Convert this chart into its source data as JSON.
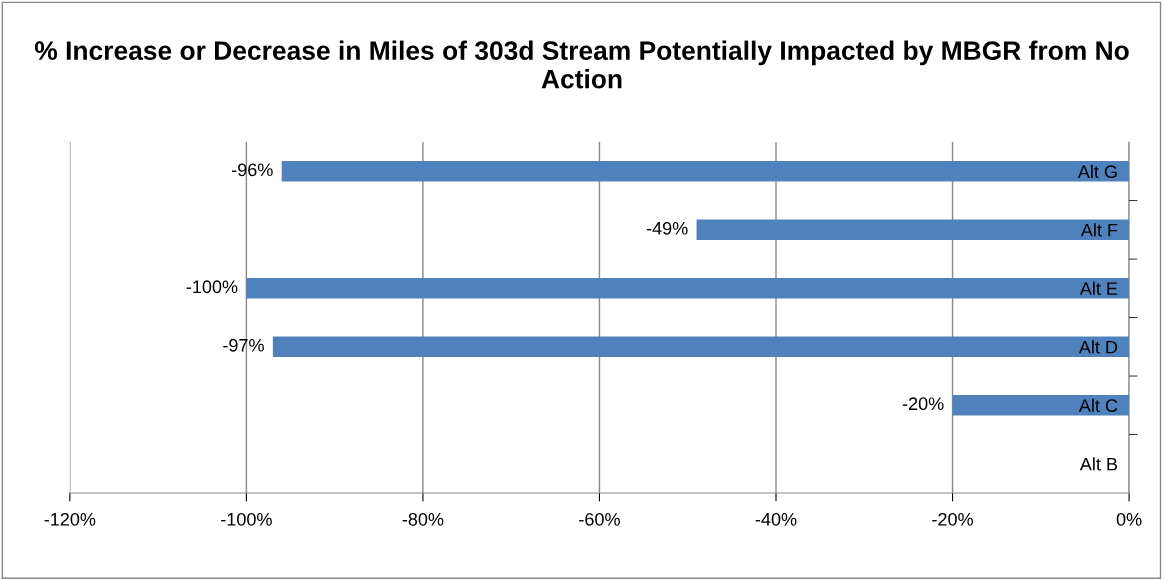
{
  "chart_data": {
    "type": "bar",
    "orientation": "horizontal",
    "title": "% Increase or Decrease in Miles of 303d Stream Potentially Impacted by MBGR from No Action",
    "categories": [
      "Alt G",
      "Alt F",
      "Alt E",
      "Alt D",
      "Alt C",
      "Alt B"
    ],
    "values": [
      -96,
      -49,
      -100,
      -97,
      -20,
      0
    ],
    "value_labels": [
      "-96%",
      "-49%",
      "-100%",
      "-97%",
      "-20%",
      null
    ],
    "color": "#4f81bd",
    "xlim": [
      -120,
      0
    ],
    "xticks": [
      {
        "value": -120,
        "label": "-120%"
      },
      {
        "value": -100,
        "label": "-100%"
      },
      {
        "value": -80,
        "label": "-80%"
      },
      {
        "value": -60,
        "label": "-60%"
      },
      {
        "value": -40,
        "label": "-40%"
      },
      {
        "value": -20,
        "label": "-20%"
      },
      {
        "value": 0,
        "label": "0%"
      }
    ],
    "grid": "x",
    "legend": false
  }
}
